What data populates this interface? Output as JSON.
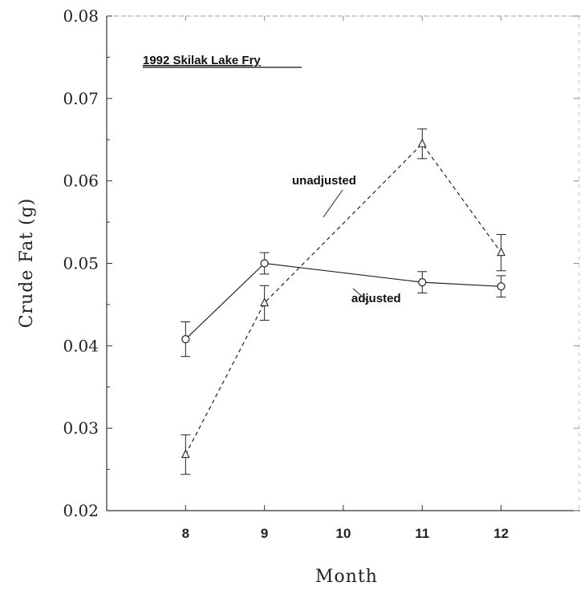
{
  "chart_data": {
    "type": "line",
    "title": "1992 Skilak Lake Fry",
    "xlabel": "Month",
    "ylabel": "Crude Fat (g)",
    "ylim": [
      0.02,
      0.08
    ],
    "xlim": [
      7,
      13
    ],
    "x_ticks": [
      8,
      9,
      10,
      11,
      12
    ],
    "y_ticks": [
      "0.02",
      "0.03",
      "0.04",
      "0.05",
      "0.06",
      "0.07",
      "0.08"
    ],
    "series": [
      {
        "name": "unadjusted",
        "marker": "triangle",
        "line_style": "dashed",
        "x": [
          8,
          9,
          11,
          12
        ],
        "values": [
          0.0268,
          0.0452,
          0.0645,
          0.0513
        ],
        "errors": [
          0.0024,
          0.0021,
          0.0018,
          0.0022
        ]
      },
      {
        "name": "adjusted",
        "marker": "circle",
        "line_style": "solid",
        "x": [
          8,
          9,
          11,
          12
        ],
        "values": [
          0.0408,
          0.05,
          0.0477,
          0.0472
        ],
        "errors": [
          0.0021,
          0.0013,
          0.0013,
          0.0013
        ]
      }
    ],
    "annotations": [
      "unadjusted",
      "adjusted"
    ]
  },
  "colors": {
    "line": "#222222",
    "axis": "#333333"
  }
}
